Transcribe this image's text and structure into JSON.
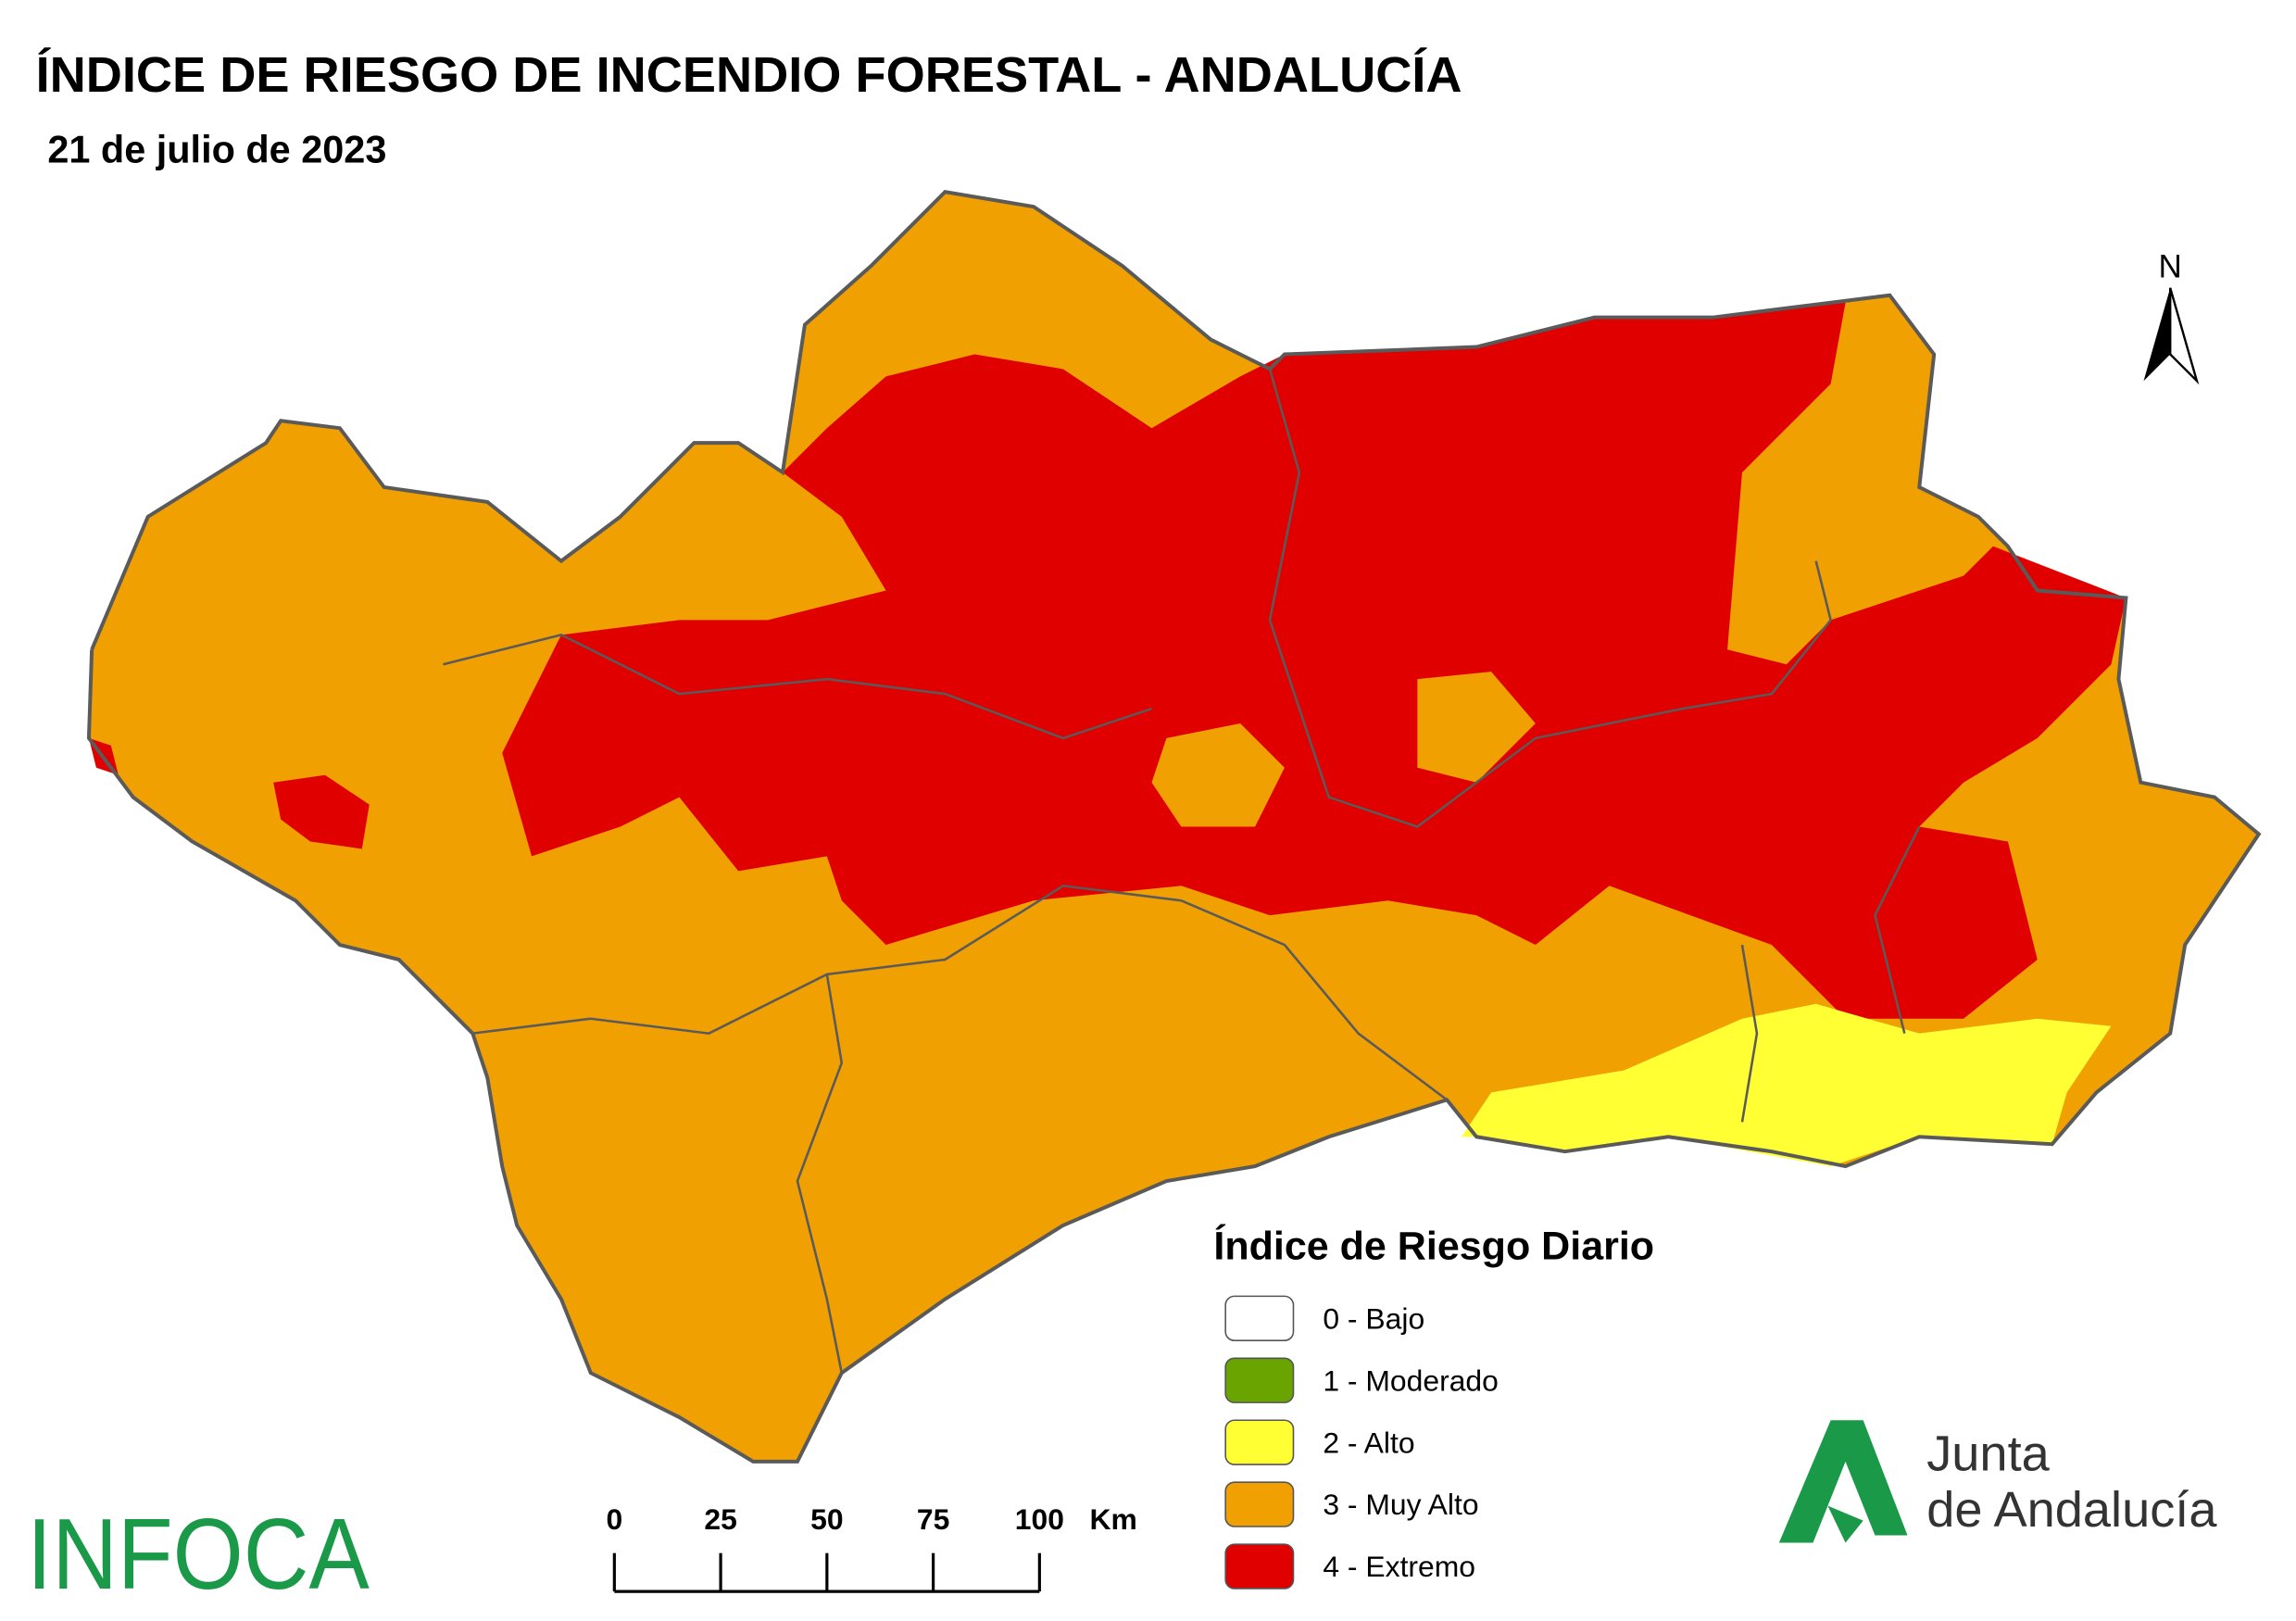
{
  "header": {
    "title": "ÍNDICE DE RIESGO DE INCENDIO FORESTAL - ANDALUCÍA",
    "date": "21 de julio de 2023"
  },
  "north_arrow": "N",
  "legend": {
    "title": "Índice de Riesgo Diario",
    "items": [
      {
        "label": "0 - Bajo",
        "color": "#ffffff"
      },
      {
        "label": "1 - Moderado",
        "color": "#6aa400"
      },
      {
        "label": "2 - Alto",
        "color": "#ffff33"
      },
      {
        "label": "3 - Muy Alto",
        "color": "#f0a000"
      },
      {
        "label": "4 - Extremo",
        "color": "#e00000"
      }
    ]
  },
  "scale_bar": {
    "ticks": [
      0,
      25,
      50,
      75,
      100
    ],
    "unit": "Km"
  },
  "logos": {
    "infoca": "INFOCA",
    "junta": [
      "Junta",
      "de Andalucía"
    ]
  }
}
